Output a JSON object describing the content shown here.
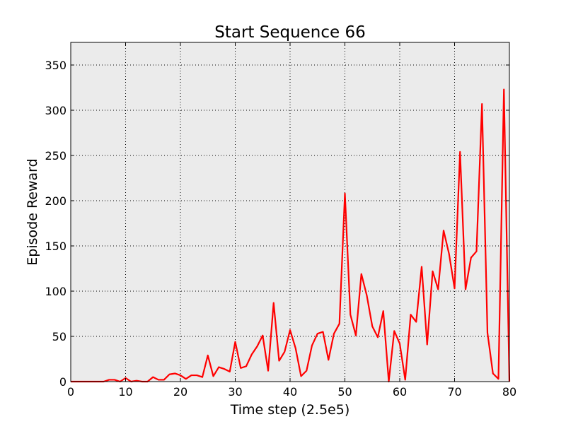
{
  "chart_data": {
    "type": "line",
    "title": "Start Sequence 66",
    "xlabel": "Time step (2.5e5)",
    "ylabel": "Episode Reward",
    "xlim": [
      0,
      80
    ],
    "ylim": [
      0,
      375
    ],
    "xticks": [
      0,
      10,
      20,
      30,
      40,
      50,
      60,
      70,
      80
    ],
    "yticks": [
      0,
      50,
      100,
      150,
      200,
      250,
      300,
      350
    ],
    "grid": true,
    "background_color": "#ebebeb",
    "series": [
      {
        "color": "#ff0000",
        "x": [
          0,
          1,
          2,
          3,
          4,
          5,
          6,
          7,
          8,
          9,
          10,
          11,
          12,
          13,
          14,
          15,
          16,
          17,
          18,
          19,
          20,
          21,
          22,
          23,
          24,
          25,
          26,
          27,
          28,
          29,
          30,
          31,
          32,
          33,
          34,
          35,
          36,
          37,
          38,
          39,
          40,
          41,
          42,
          43,
          44,
          45,
          46,
          47,
          48,
          49,
          50,
          51,
          52,
          53,
          54,
          55,
          56,
          57,
          58,
          59,
          60,
          61,
          62,
          63,
          64,
          65,
          66,
          67,
          68,
          69,
          70,
          71,
          72,
          73,
          74,
          75,
          76,
          77,
          78,
          79,
          80
        ],
        "values": [
          0,
          0,
          0,
          0,
          0,
          0,
          0,
          2,
          2,
          0,
          4,
          0,
          1,
          0,
          0,
          5,
          2,
          2,
          8,
          9,
          7,
          3,
          7,
          7,
          5,
          29,
          6,
          16,
          14,
          11,
          44,
          15,
          17,
          30,
          39,
          51,
          12,
          87,
          23,
          33,
          57,
          37,
          6,
          12,
          40,
          53,
          55,
          24,
          53,
          64,
          208,
          74,
          51,
          119,
          95,
          61,
          49,
          78,
          0,
          56,
          42,
          2,
          74,
          66,
          127,
          41,
          122,
          102,
          167,
          141,
          103,
          254,
          102,
          137,
          144,
          307,
          54,
          9,
          3,
          323,
          0
        ]
      }
    ]
  }
}
